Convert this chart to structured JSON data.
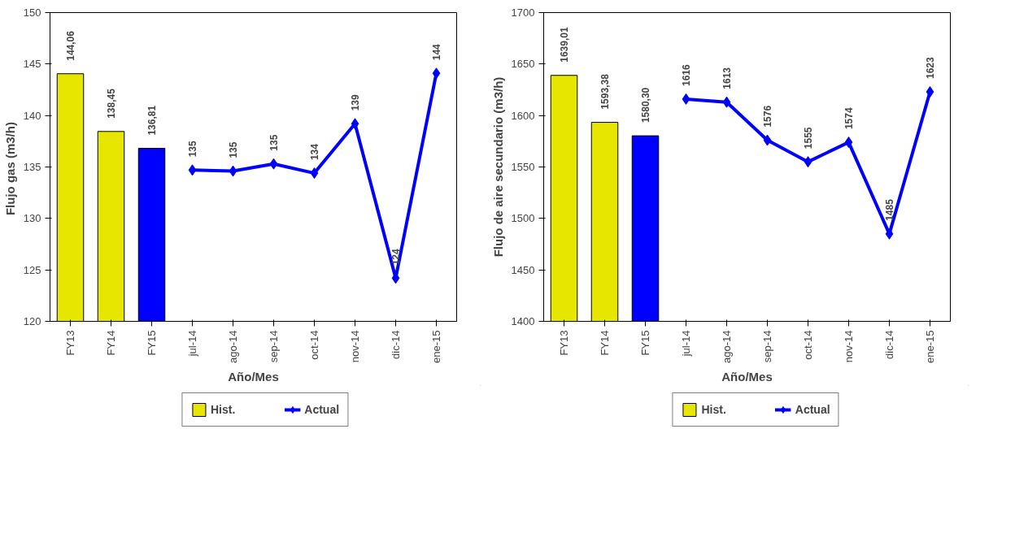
{
  "chart_data": [
    {
      "type": "bar",
      "xlabel": "Año/Mes",
      "ylabel": "Flujo gas  (m3/h)",
      "categories": [
        "FY13",
        "FY14",
        "FY15",
        "jul-14",
        "ago-14",
        "sep-14",
        "oct-14",
        "nov-14",
        "dic-14",
        "ene-15"
      ],
      "ylim": [
        120,
        150
      ],
      "yticks": [
        120,
        125,
        130,
        135,
        140,
        145,
        150
      ],
      "grid": false,
      "legend": "bottom",
      "marker": "diamond",
      "series": [
        {
          "name": "Hist.",
          "color": "#e6e600",
          "colors": [
            null,
            null,
            "#0000ff",
            null,
            null,
            null,
            null,
            null,
            null,
            null
          ],
          "values": [
            144.06,
            138.45,
            136.81,
            null,
            null,
            null,
            null,
            null,
            null,
            null
          ],
          "value_labels": [
            "144,06",
            "138,45",
            "136,81",
            null,
            null,
            null,
            null,
            null,
            null,
            null
          ]
        },
        {
          "name": "Actual",
          "type": "line",
          "color": "#0000ff",
          "values": [
            null,
            null,
            null,
            134.7,
            134.6,
            135.3,
            134.4,
            139.2,
            124.2,
            144.1
          ],
          "value_labels": [
            null,
            null,
            null,
            "135",
            "135",
            "135",
            "134",
            "139",
            "124",
            "144"
          ]
        }
      ]
    },
    {
      "type": "bar",
      "xlabel": "Año/Mes",
      "ylabel": "Flujo de aire secundario (m3/h)",
      "categories": [
        "FY13",
        "FY14",
        "FY15",
        "jul-14",
        "ago-14",
        "sep-14",
        "oct-14",
        "nov-14",
        "dic-14",
        "ene-15"
      ],
      "ylim": [
        1400,
        1700
      ],
      "yticks": [
        1400,
        1450,
        1500,
        1550,
        1600,
        1650,
        1700
      ],
      "grid": false,
      "legend": "bottom",
      "marker": "diamond",
      "series": [
        {
          "name": "Hist.",
          "color": "#e6e600",
          "colors": [
            null,
            null,
            "#0000ff",
            null,
            null,
            null,
            null,
            null,
            null,
            null
          ],
          "values": [
            1639.01,
            1593.38,
            1580.3,
            null,
            null,
            null,
            null,
            null,
            null,
            null
          ],
          "value_labels": [
            "1639,01",
            "1593,38",
            "1580,30",
            null,
            null,
            null,
            null,
            null,
            null,
            null
          ]
        },
        {
          "name": "Actual",
          "type": "line",
          "color": "#0000ff",
          "values": [
            null,
            null,
            null,
            1616,
            1613,
            1576,
            1555,
            1574,
            1485,
            1623
          ],
          "value_labels": [
            null,
            null,
            null,
            "1616",
            "1613",
            "1576",
            "1555",
            "1574",
            "1485",
            "1623"
          ]
        }
      ]
    }
  ]
}
